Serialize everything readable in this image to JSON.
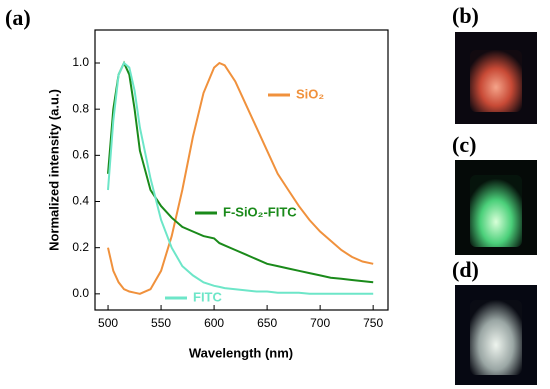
{
  "chart_data": {
    "type": "line",
    "panel_label": "(a)",
    "x_label": "Wavelength (nm)",
    "y_label": "Normalized intensity (a.u.)",
    "x": [
      500,
      505,
      510,
      515,
      520,
      525,
      530,
      540,
      550,
      560,
      570,
      580,
      590,
      600,
      605,
      610,
      620,
      630,
      640,
      650,
      660,
      670,
      680,
      690,
      700,
      710,
      720,
      730,
      740,
      750
    ],
    "series": [
      {
        "name": "SiO₂",
        "color": "#f0913c",
        "values": [
          0.2,
          0.1,
          0.05,
          0.02,
          0.01,
          0.005,
          0.0,
          0.02,
          0.1,
          0.25,
          0.45,
          0.68,
          0.87,
          0.98,
          1.0,
          0.99,
          0.92,
          0.82,
          0.72,
          0.62,
          0.52,
          0.45,
          0.38,
          0.32,
          0.27,
          0.23,
          0.19,
          0.16,
          0.14,
          0.13
        ]
      },
      {
        "name": "F-SiO₂-FITC",
        "color": "#1a8a1a",
        "values": [
          0.52,
          0.8,
          0.95,
          1.0,
          0.95,
          0.8,
          0.62,
          0.45,
          0.38,
          0.33,
          0.29,
          0.27,
          0.25,
          0.24,
          0.22,
          0.21,
          0.19,
          0.17,
          0.15,
          0.13,
          0.12,
          0.11,
          0.1,
          0.09,
          0.08,
          0.07,
          0.065,
          0.06,
          0.055,
          0.05
        ]
      },
      {
        "name": "FITC",
        "color": "#6de6c8",
        "values": [
          0.45,
          0.75,
          0.95,
          1.0,
          0.98,
          0.88,
          0.72,
          0.5,
          0.32,
          0.2,
          0.12,
          0.08,
          0.05,
          0.035,
          0.03,
          0.025,
          0.02,
          0.015,
          0.01,
          0.01,
          0.005,
          0.005,
          0.005,
          0.0,
          0.0,
          0.0,
          0.0,
          0.0,
          0.0,
          0.0
        ]
      }
    ],
    "xlim": [
      487.7,
      764
    ],
    "ylim": [
      -0.07,
      1.143
    ],
    "xticks": [
      500,
      550,
      600,
      650,
      700,
      750
    ],
    "yticks": [
      {
        "value": 0,
        "label": "0.0"
      },
      {
        "value": 0.2,
        "label": "0.2"
      },
      {
        "value": 0.4,
        "label": "0.4"
      },
      {
        "value": 0.6,
        "label": "0.6"
      },
      {
        "value": 0.8,
        "label": "0.8"
      },
      {
        "value": 1.0,
        "label": "1.0"
      }
    ],
    "grid": false
  },
  "photos": [
    {
      "label": "(b)"
    },
    {
      "label": "(c)"
    },
    {
      "label": "(d)"
    }
  ]
}
